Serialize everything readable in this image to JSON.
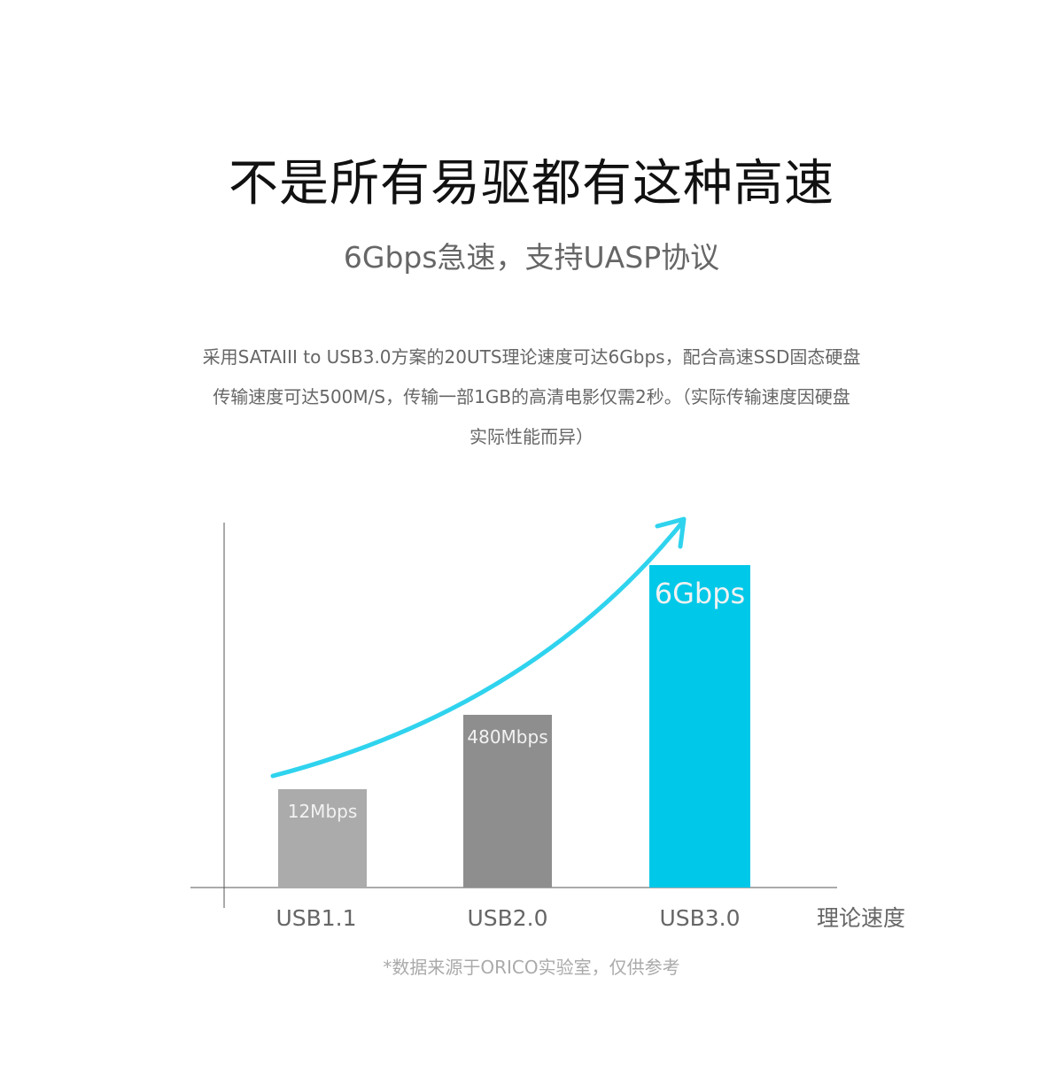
{
  "header": {
    "title": "不是所有易驱都有这种高速",
    "subtitle": "6Gbps急速，支持UASP协议"
  },
  "description": {
    "lines": [
      "采用SATAIII to USB3.0方案的20UTS理论速度可达6Gbps，配合高速SSD固态硬盘",
      "传输速度可达500M/S，传输一部1GB的高清电影仅需2秒。（实际传输速度因硬盘",
      "实际性能而异）"
    ]
  },
  "chart_data": {
    "type": "bar",
    "categories": [
      "USB1.1",
      "USB2.0",
      "USB3.0"
    ],
    "values_mbps": [
      12,
      480,
      6000
    ],
    "data_labels": [
      "12Mbps",
      "480Mbps",
      "6Gbps"
    ],
    "xlabel": "理论速度",
    "ylabel": "",
    "colors": [
      "#ababab",
      "#8e8e8e",
      "#00c8e8"
    ],
    "trend_arrow_color": "#2fd3ee",
    "grid": false
  },
  "footnote": "*数据来源于ORICO实验室，仅供参考"
}
